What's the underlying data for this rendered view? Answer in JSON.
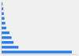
{
  "chart_data": {
    "type": "bar",
    "orientation": "horizontal",
    "categories": [
      null,
      null,
      null,
      null,
      null,
      null,
      null,
      null,
      null,
      null,
      null
    ],
    "values": [
      3457,
      830,
      590,
      490,
      390,
      230,
      180,
      140,
      110,
      85,
      50
    ],
    "color": "#2b7de9",
    "xlim": [
      0,
      3733.56
    ],
    "tick_labels": false
  }
}
